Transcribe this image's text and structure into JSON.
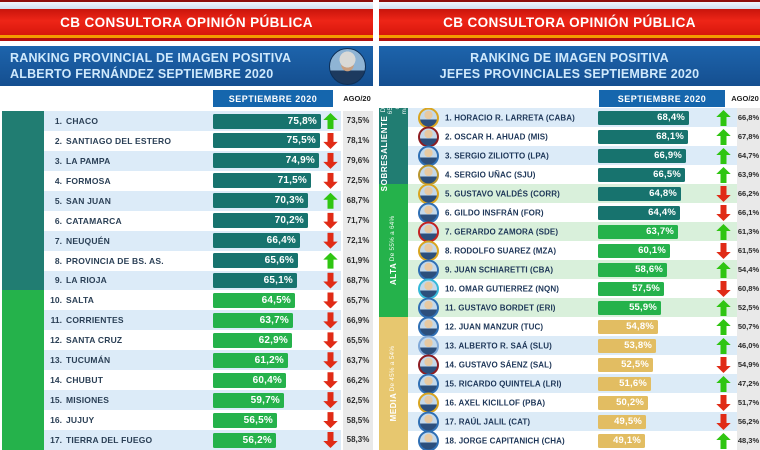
{
  "brand": "CB CONSULTORA OPINIÓN PÚBLICA",
  "columns": {
    "current": "SEPTIEMBRE 2020",
    "previous": "AGO/20"
  },
  "colors": {
    "banner_red": "#e32014",
    "stripe_orange": "#f49b00",
    "stripe_dark_red": "#b01010",
    "title_blue": "#1a5ea6",
    "title_text": "#cfe9fc",
    "header_bar_blue": "#1566ad",
    "previous_col_bg": "#e9e9e9",
    "arrow_up": "#2fc512",
    "arrow_down": "#e02b16",
    "tier_dark": {
      "band": "#217d72",
      "bar": "#17736e",
      "tint": "#dcebf8"
    },
    "tier_green": {
      "band": "#25b24b",
      "bar": "#25b24b",
      "tint": "#d9f0db"
    },
    "tier_gold": {
      "band": "#e7c76f",
      "bar": "#e2bd62",
      "tint": "#dcebf7"
    }
  },
  "left_panel": {
    "title_line1": "RANKING PROVINCIAL DE IMAGEN POSITIVA",
    "title_line2": "ALBERTO FERNÁNDEZ SEPTIEMBRE 2020",
    "photo_subject": "Alberto Fernández",
    "rows": [
      {
        "rank": 1,
        "name": "CHACO",
        "value": 75.8,
        "previous": 73.5,
        "trend": "up",
        "tier": "dark"
      },
      {
        "rank": 2,
        "name": "SANTIAGO DEL ESTERO",
        "value": 75.5,
        "previous": 78.1,
        "trend": "down",
        "tier": "dark"
      },
      {
        "rank": 3,
        "name": "LA PAMPA",
        "value": 74.9,
        "previous": 79.6,
        "trend": "down",
        "tier": "dark"
      },
      {
        "rank": 4,
        "name": "FORMOSA",
        "value": 71.5,
        "previous": 72.5,
        "trend": "down",
        "tier": "dark"
      },
      {
        "rank": 5,
        "name": "SAN JUAN",
        "value": 70.3,
        "previous": 68.7,
        "trend": "up",
        "tier": "dark"
      },
      {
        "rank": 6,
        "name": "CATAMARCA",
        "value": 70.2,
        "previous": 71.7,
        "trend": "down",
        "tier": "dark"
      },
      {
        "rank": 7,
        "name": "NEUQUÉN",
        "value": 66.4,
        "previous": 72.1,
        "trend": "down",
        "tier": "dark"
      },
      {
        "rank": 8,
        "name": "PROVINCIA DE BS. AS.",
        "value": 65.6,
        "previous": 61.9,
        "trend": "up",
        "tier": "dark"
      },
      {
        "rank": 9,
        "name": "LA RIOJA",
        "value": 65.1,
        "previous": 68.7,
        "trend": "down",
        "tier": "dark"
      },
      {
        "rank": 10,
        "name": "SALTA",
        "value": 64.5,
        "previous": 65.7,
        "trend": "down",
        "tier": "green"
      },
      {
        "rank": 11,
        "name": "CORRIENTES",
        "value": 63.7,
        "previous": 66.9,
        "trend": "down",
        "tier": "green"
      },
      {
        "rank": 12,
        "name": "SANTA CRUZ",
        "value": 62.9,
        "previous": 65.5,
        "trend": "down",
        "tier": "green"
      },
      {
        "rank": 13,
        "name": "TUCUMÁN",
        "value": 61.2,
        "previous": 63.7,
        "trend": "down",
        "tier": "green"
      },
      {
        "rank": 14,
        "name": "CHUBUT",
        "value": 60.4,
        "previous": 66.2,
        "trend": "down",
        "tier": "green"
      },
      {
        "rank": 15,
        "name": "MISIONES",
        "value": 59.7,
        "previous": 62.5,
        "trend": "down",
        "tier": "green"
      },
      {
        "rank": 16,
        "name": "JUJUY",
        "value": 56.5,
        "previous": 58.5,
        "trend": "down",
        "tier": "green"
      },
      {
        "rank": 17,
        "name": "TIERRA DEL FUEGO",
        "value": 56.2,
        "previous": 58.3,
        "trend": "down",
        "tier": "green"
      }
    ]
  },
  "right_panel": {
    "title_line1": "RANKING DE IMAGEN POSITIVA",
    "title_line2": "JEFES PROVINCIALES SEPTIEMBRE 2020",
    "tiers": [
      {
        "label": "SOBRESALIENTE",
        "range": "De 65% o más",
        "rows_from": 1,
        "rows_to": 4,
        "tier": "dark"
      },
      {
        "label": "ALTA",
        "range": "De 55% a 64%",
        "rows_from": 5,
        "rows_to": 11,
        "tier": "green"
      },
      {
        "label": "MEDIA",
        "range": "De 45% a 54%",
        "rows_from": 12,
        "rows_to": 18,
        "tier": "gold"
      }
    ],
    "rows": [
      {
        "rank": 1,
        "name": "HORACIO R. LARRETA",
        "district": "CABA",
        "value": 68.4,
        "previous": 66.8,
        "trend": "up",
        "section": "dark",
        "bar_tier": "dark",
        "ring": "#d9a520"
      },
      {
        "rank": 2,
        "name": "OSCAR H. AHUAD",
        "district": "MIS",
        "value": 68.1,
        "previous": 67.8,
        "trend": "up",
        "section": "dark",
        "bar_tier": "dark",
        "ring": "#8e1d22"
      },
      {
        "rank": 3,
        "name": "SERGIO ZILIOTTO",
        "district": "LPA",
        "value": 66.9,
        "previous": 64.7,
        "trend": "up",
        "section": "dark",
        "bar_tier": "dark",
        "ring": "#2f6fb4"
      },
      {
        "rank": 4,
        "name": "SERGIO UÑAC",
        "district": "SJU",
        "value": 66.5,
        "previous": 63.9,
        "trend": "up",
        "section": "dark",
        "bar_tier": "dark",
        "ring": "#b9962f"
      },
      {
        "rank": 5,
        "name": "GUSTAVO VALDÉS",
        "district": "CORR",
        "value": 64.8,
        "previous": 66.2,
        "trend": "down",
        "section": "green",
        "bar_tier": "dark",
        "ring": "#d9a520"
      },
      {
        "rank": 6,
        "name": "GILDO INSFRÁN",
        "district": "FOR",
        "value": 64.4,
        "previous": 66.1,
        "trend": "down",
        "section": "green",
        "bar_tier": "dark",
        "ring": "#2f6fb4"
      },
      {
        "rank": 7,
        "name": "GERARDO ZAMORA",
        "district": "SDE",
        "value": 63.7,
        "previous": 61.3,
        "trend": "up",
        "section": "green",
        "bar_tier": "green",
        "ring": "#c32222"
      },
      {
        "rank": 8,
        "name": "RODOLFO SUAREZ",
        "district": "MZA",
        "value": 60.1,
        "previous": 61.5,
        "trend": "down",
        "section": "green",
        "bar_tier": "green",
        "ring": "#d9a520"
      },
      {
        "rank": 9,
        "name": "JUAN SCHIARETTI",
        "district": "CBA",
        "value": 58.6,
        "previous": 54.4,
        "trend": "up",
        "section": "green",
        "bar_tier": "green",
        "ring": "#2f6fb4"
      },
      {
        "rank": 10,
        "name": "OMAR GUTIERREZ",
        "district": "NQN",
        "value": 57.5,
        "previous": 60.8,
        "trend": "down",
        "section": "green",
        "bar_tier": "green",
        "ring": "#35b8d8"
      },
      {
        "rank": 11,
        "name": "GUSTAVO BORDET",
        "district": "ERI",
        "value": 55.9,
        "previous": 52.5,
        "trend": "up",
        "section": "green",
        "bar_tier": "green",
        "ring": "#2f6fb4"
      },
      {
        "rank": 12,
        "name": "JUAN MANZUR",
        "district": "TUC",
        "value": 54.8,
        "previous": 50.7,
        "trend": "up",
        "section": "gold",
        "bar_tier": "gold",
        "ring": "#2f6fb4"
      },
      {
        "rank": 13,
        "name": "ALBERTO R. SAÁ",
        "district": "SLU",
        "value": 53.8,
        "previous": 46.0,
        "trend": "up",
        "section": "gold",
        "bar_tier": "gold",
        "ring": "#7fa8d8"
      },
      {
        "rank": 14,
        "name": "GUSTAVO SÁENZ",
        "district": "SAL",
        "value": 52.5,
        "previous": 54.9,
        "trend": "down",
        "section": "gold",
        "bar_tier": "gold",
        "ring": "#8e1d22"
      },
      {
        "rank": 15,
        "name": "RICARDO QUINTELA",
        "district": "LRI",
        "value": 51.6,
        "previous": 47.2,
        "trend": "up",
        "section": "gold",
        "bar_tier": "gold",
        "ring": "#2f6fb4"
      },
      {
        "rank": 16,
        "name": "AXEL KICILLOF",
        "district": "PBA",
        "value": 50.2,
        "previous": 51.7,
        "trend": "down",
        "section": "gold",
        "bar_tier": "gold",
        "ring": "#d9a520"
      },
      {
        "rank": 17,
        "name": "RAÚL JALIL",
        "district": "CAT",
        "value": 49.5,
        "previous": 56.2,
        "trend": "down",
        "section": "gold",
        "bar_tier": "gold",
        "ring": "#2f6fb4"
      },
      {
        "rank": 18,
        "name": "JORGE CAPITANICH",
        "district": "CHA",
        "value": 49.1,
        "previous": 48.3,
        "trend": "up",
        "section": "gold",
        "bar_tier": "gold",
        "ring": "#2f6fb4"
      }
    ]
  },
  "chart_data": [
    {
      "type": "bar",
      "title": "RANKING PROVINCIAL DE IMAGEN POSITIVA – ALBERTO FERNÁNDEZ SEPTIEMBRE 2020",
      "unit": "%",
      "orientation": "horizontal",
      "categories": [
        "CHACO",
        "SANTIAGO DEL ESTERO",
        "LA PAMPA",
        "FORMOSA",
        "SAN JUAN",
        "CATAMARCA",
        "NEUQUÉN",
        "PROVINCIA DE BS. AS.",
        "LA RIOJA",
        "SALTA",
        "CORRIENTES",
        "SANTA CRUZ",
        "TUCUMÁN",
        "CHUBUT",
        "MISIONES",
        "JUJUY",
        "TIERRA DEL FUEGO"
      ],
      "series": [
        {
          "name": "SEPTIEMBRE 2020",
          "values": [
            75.8,
            75.5,
            74.9,
            71.5,
            70.3,
            70.2,
            66.4,
            65.6,
            65.1,
            64.5,
            63.7,
            62.9,
            61.2,
            60.4,
            59.7,
            56.5,
            56.2
          ]
        },
        {
          "name": "AGO/20",
          "values": [
            73.5,
            78.1,
            79.6,
            72.5,
            68.7,
            71.7,
            72.1,
            61.9,
            68.7,
            65.7,
            66.9,
            65.5,
            63.7,
            66.2,
            62.5,
            58.5,
            58.3
          ]
        }
      ],
      "trend_vs_previous": [
        "up",
        "down",
        "down",
        "down",
        "up",
        "down",
        "down",
        "up",
        "down",
        "down",
        "down",
        "down",
        "down",
        "down",
        "down",
        "down",
        "down"
      ]
    },
    {
      "type": "bar",
      "title": "RANKING DE IMAGEN POSITIVA – JEFES PROVINCIALES SEPTIEMBRE 2020",
      "unit": "%",
      "orientation": "horizontal",
      "categories": [
        "HORACIO R. LARRETA (CABA)",
        "OSCAR H. AHUAD (MIS)",
        "SERGIO ZILIOTTO (LPA)",
        "SERGIO UÑAC (SJU)",
        "GUSTAVO VALDÉS (CORR)",
        "GILDO INSFRÁN (FOR)",
        "GERARDO ZAMORA (SDE)",
        "RODOLFO SUAREZ (MZA)",
        "JUAN SCHIARETTI (CBA)",
        "OMAR GUTIERREZ (NQN)",
        "GUSTAVO BORDET (ERI)",
        "JUAN MANZUR (TUC)",
        "ALBERTO R. SAÁ (SLU)",
        "GUSTAVO SÁENZ (SAL)",
        "RICARDO QUINTELA (LRI)",
        "AXEL KICILLOF (PBA)",
        "RAÚL JALIL (CAT)",
        "JORGE CAPITANICH (CHA)"
      ],
      "series": [
        {
          "name": "SEPTIEMBRE 2020",
          "values": [
            68.4,
            68.1,
            66.9,
            66.5,
            64.8,
            64.4,
            63.7,
            60.1,
            58.6,
            57.5,
            55.9,
            54.8,
            53.8,
            52.5,
            51.6,
            50.2,
            49.5,
            49.1
          ]
        },
        {
          "name": "AGO/20",
          "values": [
            66.8,
            67.8,
            64.7,
            63.9,
            66.2,
            66.1,
            61.3,
            61.5,
            54.4,
            60.8,
            52.5,
            50.7,
            46.0,
            54.9,
            47.2,
            51.7,
            56.2,
            48.3
          ]
        }
      ],
      "trend_vs_previous": [
        "up",
        "up",
        "up",
        "up",
        "down",
        "down",
        "up",
        "down",
        "up",
        "down",
        "up",
        "up",
        "up",
        "down",
        "up",
        "down",
        "down",
        "up"
      ],
      "tiers": [
        {
          "label": "SOBRESALIENTE",
          "range": "De 65% o más"
        },
        {
          "label": "ALTA",
          "range": "De 55% a 64%"
        },
        {
          "label": "MEDIA",
          "range": "De 45% a 54%"
        }
      ]
    }
  ]
}
